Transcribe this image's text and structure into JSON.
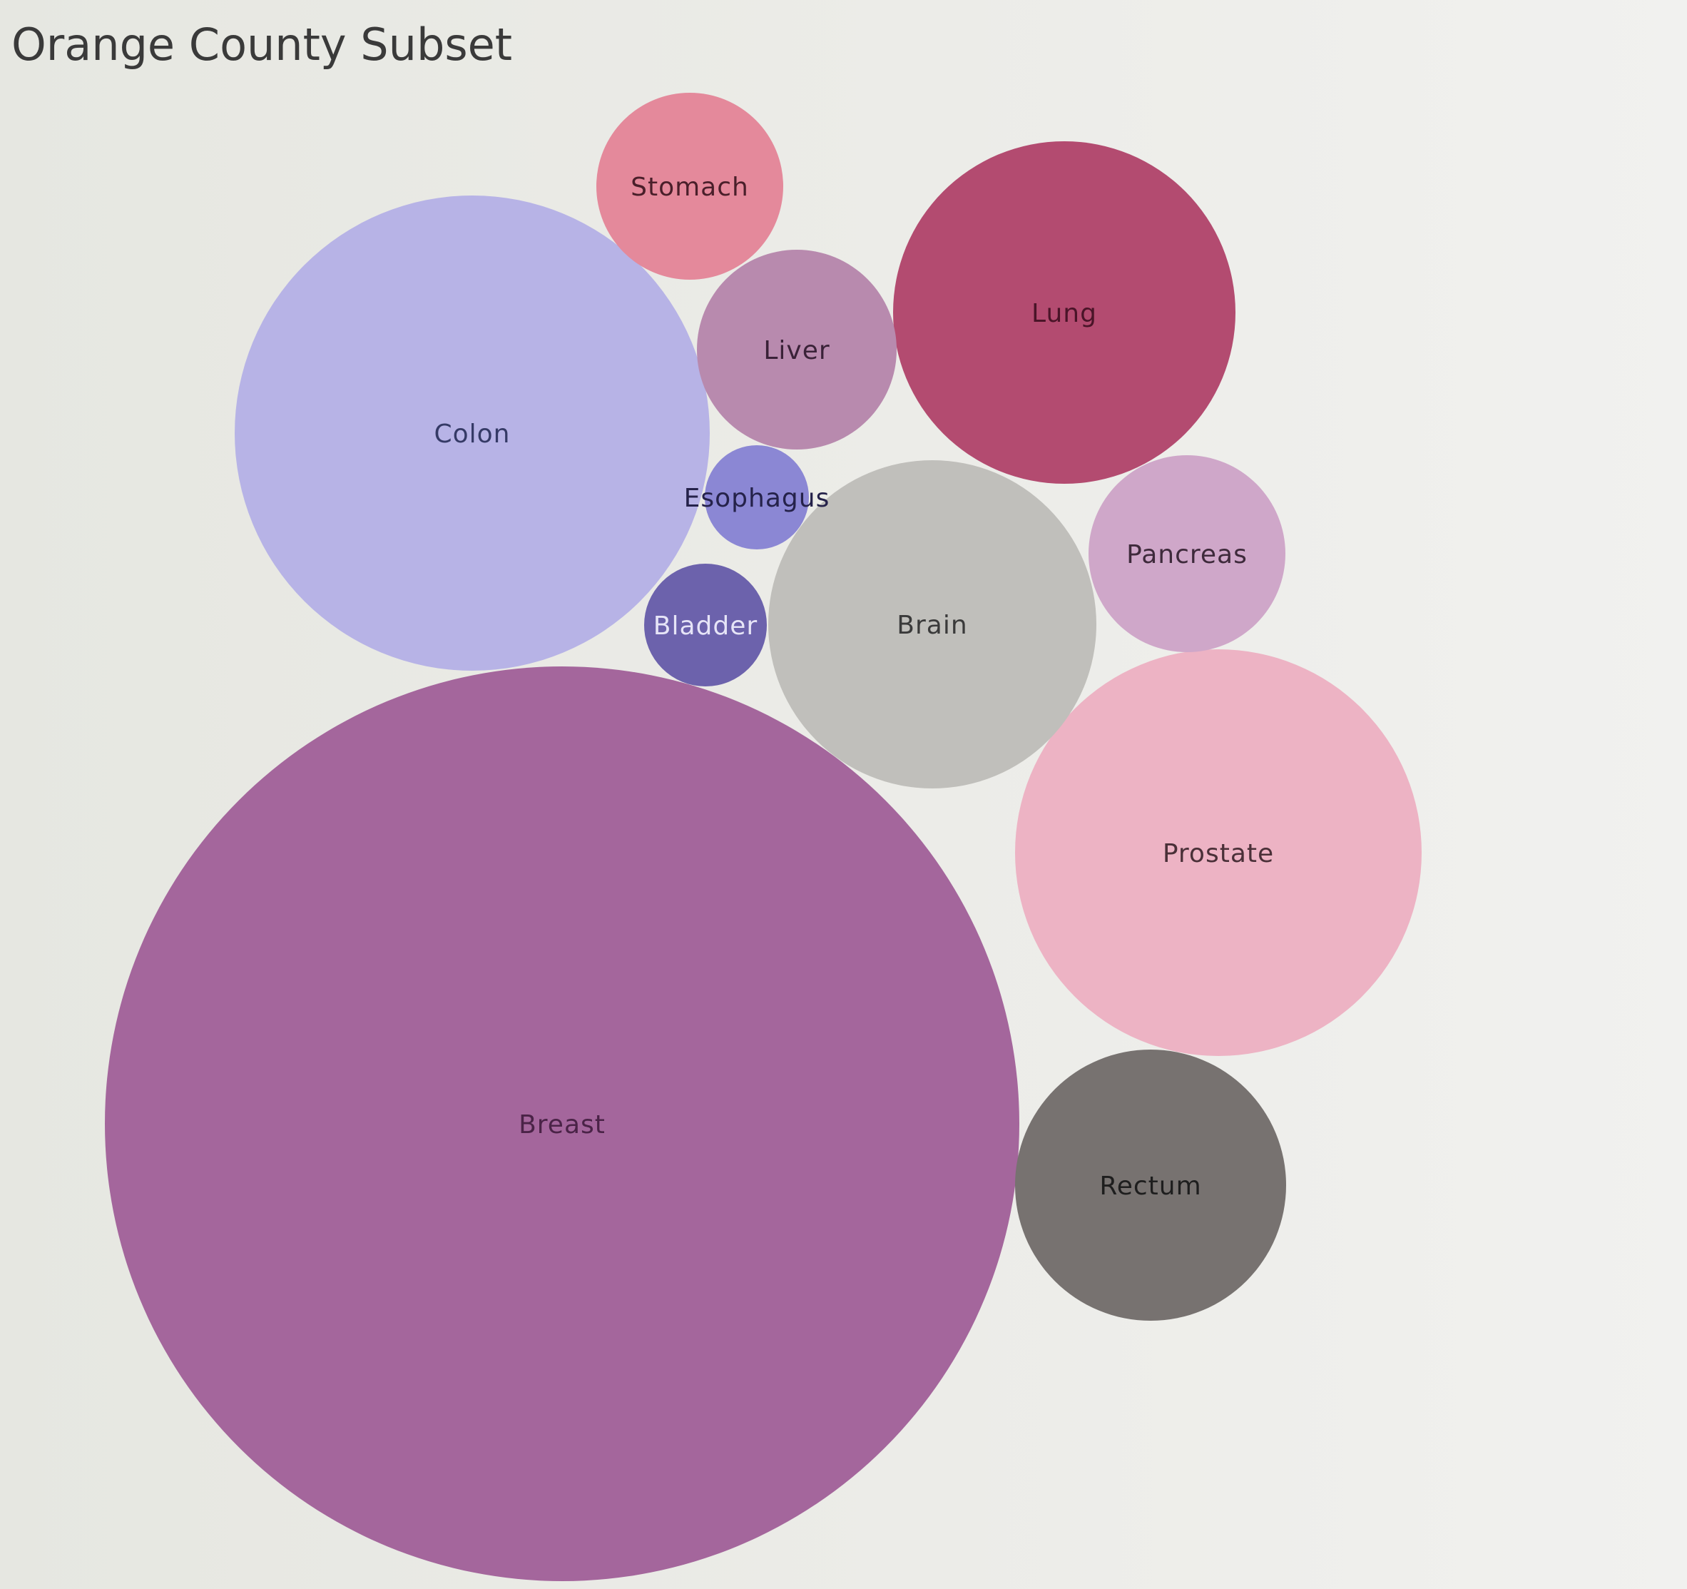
{
  "chart_data": {
    "type": "bubble",
    "title": "Orange County Subset",
    "series": [
      {
        "name": "Breast",
        "color": "#a4669c",
        "label_color": "#4a2347"
      },
      {
        "name": "Colon",
        "color": "#b7b3e6",
        "label_color": "#353a66"
      },
      {
        "name": "Prostate",
        "color": "#edb3c4",
        "label_color": "#4a3038"
      },
      {
        "name": "Brain",
        "color": "#c0bfbb",
        "label_color": "#3a3a3a"
      },
      {
        "name": "Lung",
        "color": "#b34b70",
        "label_color": "#4a1428"
      },
      {
        "name": "Rectum",
        "color": "#777270",
        "label_color": "#1e1e1e"
      },
      {
        "name": "Liver",
        "color": "#b88aae",
        "label_color": "#3a2238"
      },
      {
        "name": "Pancreas",
        "color": "#cfa7c9",
        "label_color": "#3e2a3b"
      },
      {
        "name": "Stomach",
        "color": "#e4899b",
        "label_color": "#4a1f2a"
      },
      {
        "name": "Esophagus",
        "color": "#8b87d4",
        "label_color": "#25224a"
      },
      {
        "name": "Bladder",
        "color": "#6c62ac",
        "label_color": "#e6e4f7"
      }
    ]
  }
}
